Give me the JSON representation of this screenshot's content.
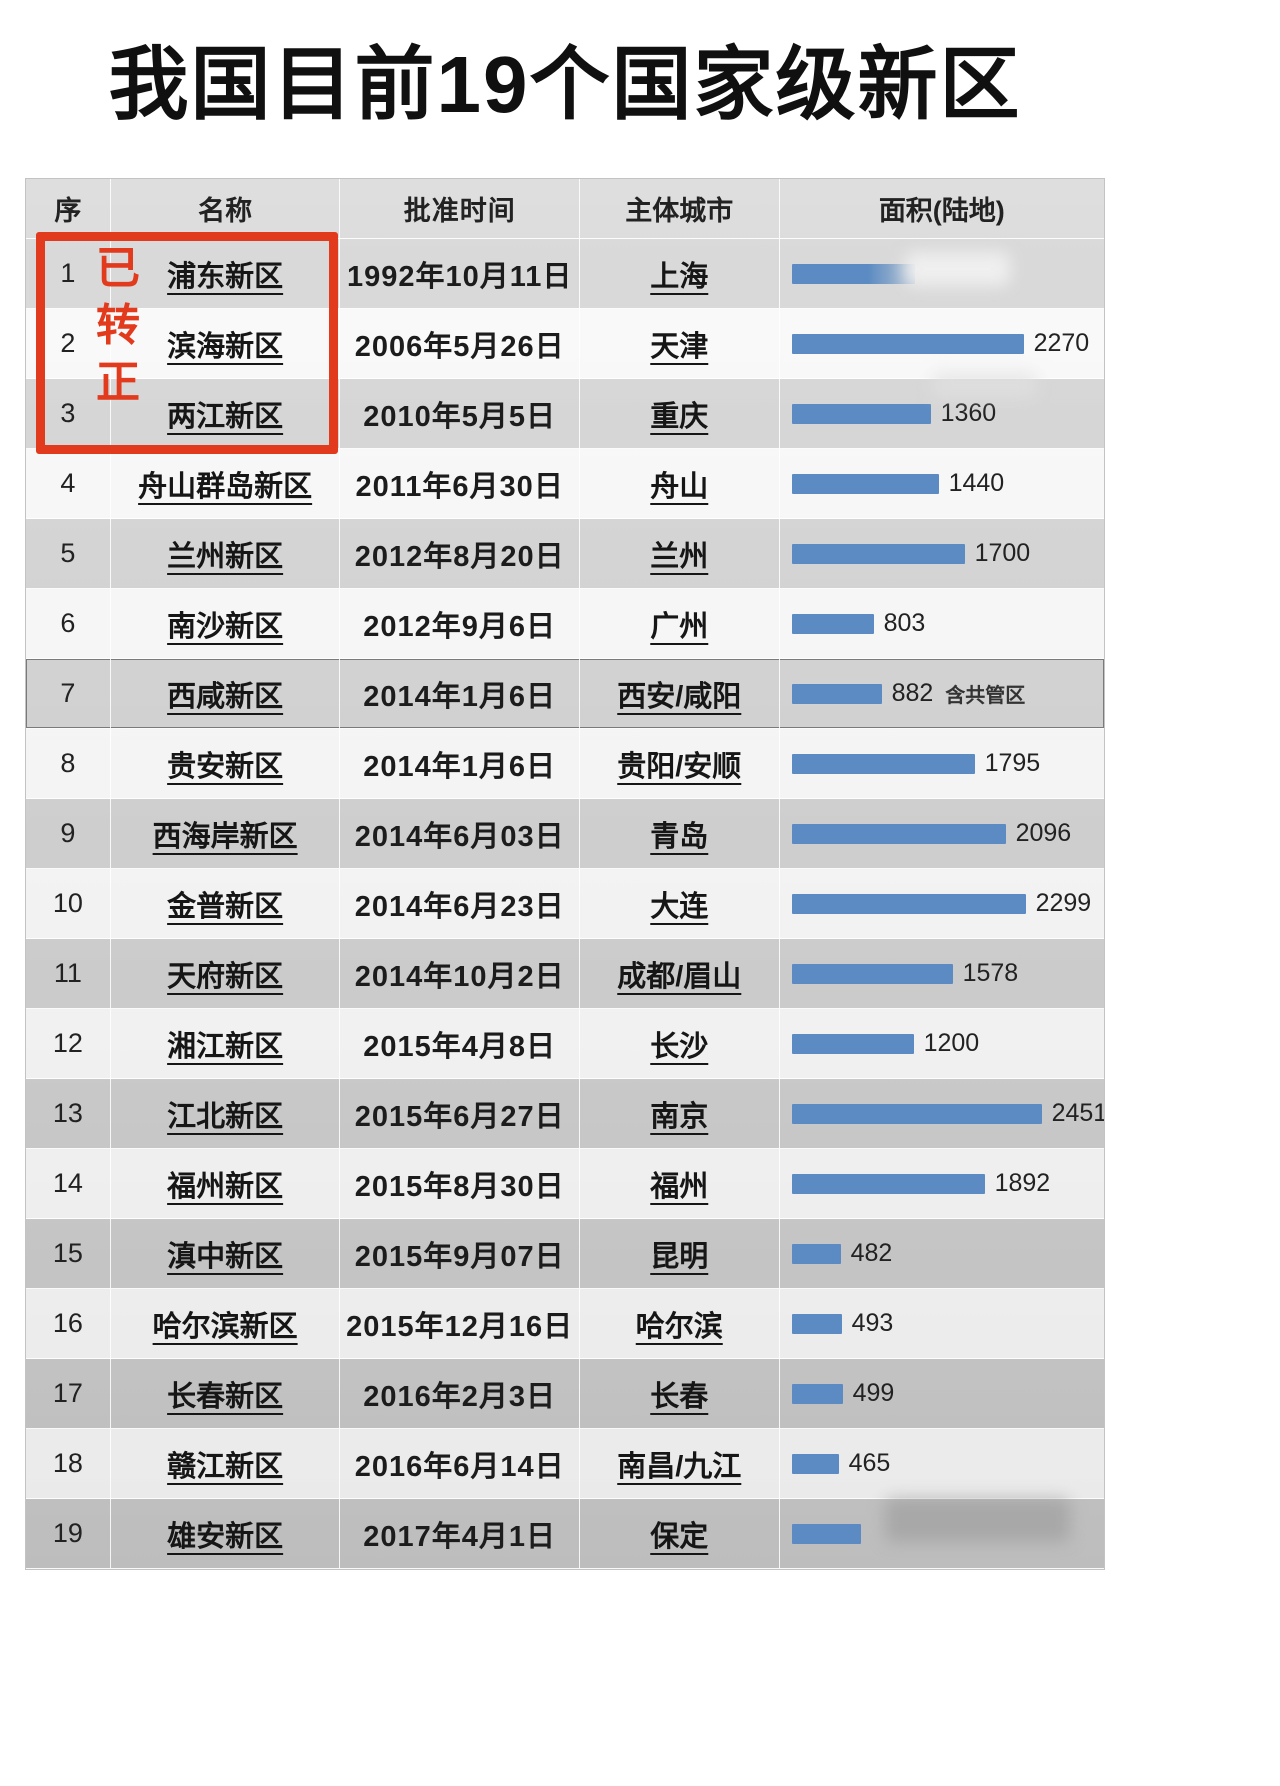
{
  "title": "我国目前19个国家级新区",
  "annotation": {
    "chars": [
      "已",
      "转",
      "正"
    ],
    "meaning": "已转正"
  },
  "colors": {
    "bar": "#5b8bc2",
    "annotation_red": "#e23a1d"
  },
  "table": {
    "headers": {
      "no": "序",
      "name": "名称",
      "date": "批准时间",
      "city": "主体城市",
      "area": "面积(陆地)"
    },
    "bar_max": 2451,
    "rows": [
      {
        "no": "1",
        "name": "浦东新区",
        "date": "1992年10月11日",
        "city": "上海",
        "bar": 1210,
        "label": "",
        "blur_end": true
      },
      {
        "no": "2",
        "name": "滨海新区",
        "date": "2006年5月26日",
        "city": "天津",
        "bar": 2270,
        "label": "2270"
      },
      {
        "no": "3",
        "name": "两江新区",
        "date": "2010年5月5日",
        "city": "重庆",
        "bar": 1360,
        "label": "1360"
      },
      {
        "no": "4",
        "name": "舟山群岛新区",
        "date": "2011年6月30日",
        "city": "舟山",
        "bar": 1440,
        "label": "1440"
      },
      {
        "no": "5",
        "name": "兰州新区",
        "date": "2012年8月20日",
        "city": "兰州",
        "bar": 1700,
        "label": "1700"
      },
      {
        "no": "6",
        "name": "南沙新区",
        "date": "2012年9月6日",
        "city": "广州",
        "bar": 803,
        "label": "803"
      },
      {
        "no": "7",
        "name": "西咸新区",
        "date": "2014年1月6日",
        "city": "西安/咸阳",
        "bar": 882,
        "label": "882",
        "note": "含共管区",
        "outlined": true
      },
      {
        "no": "8",
        "name": "贵安新区",
        "date": "2014年1月6日",
        "city": "贵阳/安顺",
        "bar": 1795,
        "label": "1795"
      },
      {
        "no": "9",
        "name": "西海岸新区",
        "date": "2014年6月03日",
        "city": "青岛",
        "bar": 2096,
        "label": "2096"
      },
      {
        "no": "10",
        "name": "金普新区",
        "date": "2014年6月23日",
        "city": "大连",
        "bar": 2299,
        "label": "2299"
      },
      {
        "no": "11",
        "name": "天府新区",
        "date": "2014年10月2日",
        "city": "成都/眉山",
        "bar": 1578,
        "label": "1578"
      },
      {
        "no": "12",
        "name": "湘江新区",
        "date": "2015年4月8日",
        "city": "长沙",
        "bar": 1200,
        "label": "1200"
      },
      {
        "no": "13",
        "name": "江北新区",
        "date": "2015年6月27日",
        "city": "南京",
        "bar": 2451,
        "label": "2451"
      },
      {
        "no": "14",
        "name": "福州新区",
        "date": "2015年8月30日",
        "city": "福州",
        "bar": 1892,
        "label": "1892"
      },
      {
        "no": "15",
        "name": "滇中新区",
        "date": "2015年9月07日",
        "city": "昆明",
        "bar": 482,
        "label": "482"
      },
      {
        "no": "16",
        "name": "哈尔滨新区",
        "date": "2015年12月16日",
        "city": "哈尔滨",
        "bar": 493,
        "label": "493"
      },
      {
        "no": "17",
        "name": "长春新区",
        "date": "2016年2月3日",
        "city": "长春",
        "bar": 499,
        "label": "499"
      },
      {
        "no": "18",
        "name": "赣江新区",
        "date": "2016年6月14日",
        "city": "南昌/九江",
        "bar": 465,
        "label": "465"
      },
      {
        "no": "19",
        "name": "雄安新区",
        "date": "2017年4月1日",
        "city": "保定",
        "bar": 680,
        "label": "",
        "watermark": true
      }
    ]
  },
  "chart_data": {
    "type": "table",
    "title": "我国目前19个国家级新区",
    "columns": [
      "序",
      "名称",
      "批准时间",
      "主体城市",
      "面积(陆地)"
    ],
    "rows": [
      [
        "1",
        "浦东新区",
        "1992年10月11日",
        "上海",
        null
      ],
      [
        "2",
        "滨海新区",
        "2006年5月26日",
        "天津",
        2270
      ],
      [
        "3",
        "两江新区",
        "2010年5月5日",
        "重庆",
        1360
      ],
      [
        "4",
        "舟山群岛新区",
        "2011年6月30日",
        "舟山",
        1440
      ],
      [
        "5",
        "兰州新区",
        "2012年8月20日",
        "兰州",
        1700
      ],
      [
        "6",
        "南沙新区",
        "2012年9月6日",
        "广州",
        803
      ],
      [
        "7",
        "西咸新区",
        "2014年1月6日",
        "西安/咸阳",
        882
      ],
      [
        "8",
        "贵安新区",
        "2014年1月6日",
        "贵阳/安顺",
        1795
      ],
      [
        "9",
        "西海岸新区",
        "2014年6月03日",
        "青岛",
        2096
      ],
      [
        "10",
        "金普新区",
        "2014年6月23日",
        "大连",
        2299
      ],
      [
        "11",
        "天府新区",
        "2014年10月2日",
        "成都/眉山",
        1578
      ],
      [
        "12",
        "湘江新区",
        "2015年4月8日",
        "长沙",
        1200
      ],
      [
        "13",
        "江北新区",
        "2015年6月27日",
        "南京",
        2451
      ],
      [
        "14",
        "福州新区",
        "2015年8月30日",
        "福州",
        1892
      ],
      [
        "15",
        "滇中新区",
        "2015年9月07日",
        "昆明",
        482
      ],
      [
        "16",
        "哈尔滨新区",
        "2015年12月16日",
        "哈尔滨",
        493
      ],
      [
        "17",
        "长春新区",
        "2016年2月3日",
        "长春",
        499
      ],
      [
        "18",
        "赣江新区",
        "2016年6月14日",
        "南昌/九江",
        465
      ],
      [
        "19",
        "雄安新区",
        "2017年4月1日",
        "保定",
        null
      ]
    ],
    "embedded_bar_chart": {
      "type": "bar",
      "orientation": "horizontal",
      "series_label": "面积(陆地)",
      "xlim": [
        0,
        2500
      ],
      "bar_color": "#5b8bc2",
      "categories": [
        "浦东新区",
        "滨海新区",
        "两江新区",
        "舟山群岛新区",
        "兰州新区",
        "南沙新区",
        "西咸新区",
        "贵安新区",
        "西海岸新区",
        "金普新区",
        "天府新区",
        "湘江新区",
        "江北新区",
        "福州新区",
        "滇中新区",
        "哈尔滨新区",
        "长春新区",
        "赣江新区",
        "雄安新区"
      ],
      "values": [
        1210,
        2270,
        1360,
        1440,
        1700,
        803,
        882,
        1795,
        2096,
        2299,
        1578,
        1200,
        2451,
        1892,
        482,
        493,
        499,
        465,
        680
      ],
      "value_labels": [
        "",
        "2270",
        "1360",
        "1440",
        "1700",
        "803",
        "882 含共管区",
        "1795",
        "2096",
        "2299",
        "1578",
        "1200",
        "2451",
        "1892",
        "482",
        "493",
        "499",
        "465",
        ""
      ],
      "notes": "values for rows 1 and 19 are estimated from bar length; their labels are blurred in the source image"
    },
    "annotations": [
      "已转正 (red box around rows 1-3 names)",
      "含共管区 (note beside 882 in row 7)"
    ]
  }
}
